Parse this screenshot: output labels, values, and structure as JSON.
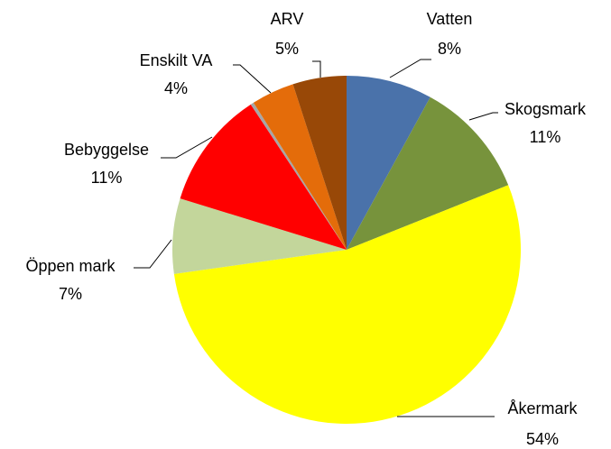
{
  "chart_data": {
    "type": "pie",
    "categories": [
      "Vatten",
      "Skogsmark",
      "Åkermark",
      "Öppen mark",
      "Bebyggelse",
      null,
      "Enskilt VA",
      "ARV"
    ],
    "values": [
      8,
      11,
      54,
      7,
      11,
      0.3,
      4,
      5
    ],
    "value_labels": [
      "8%",
      "11%",
      "54%",
      "7%",
      "11%",
      null,
      "4%",
      "5%"
    ],
    "colors": [
      "#4a72aa",
      "#77933c",
      "#ffff00",
      "#c3d69b",
      "#ff0000",
      "#a6a6a6",
      "#e46c0a",
      "#984807"
    ]
  }
}
